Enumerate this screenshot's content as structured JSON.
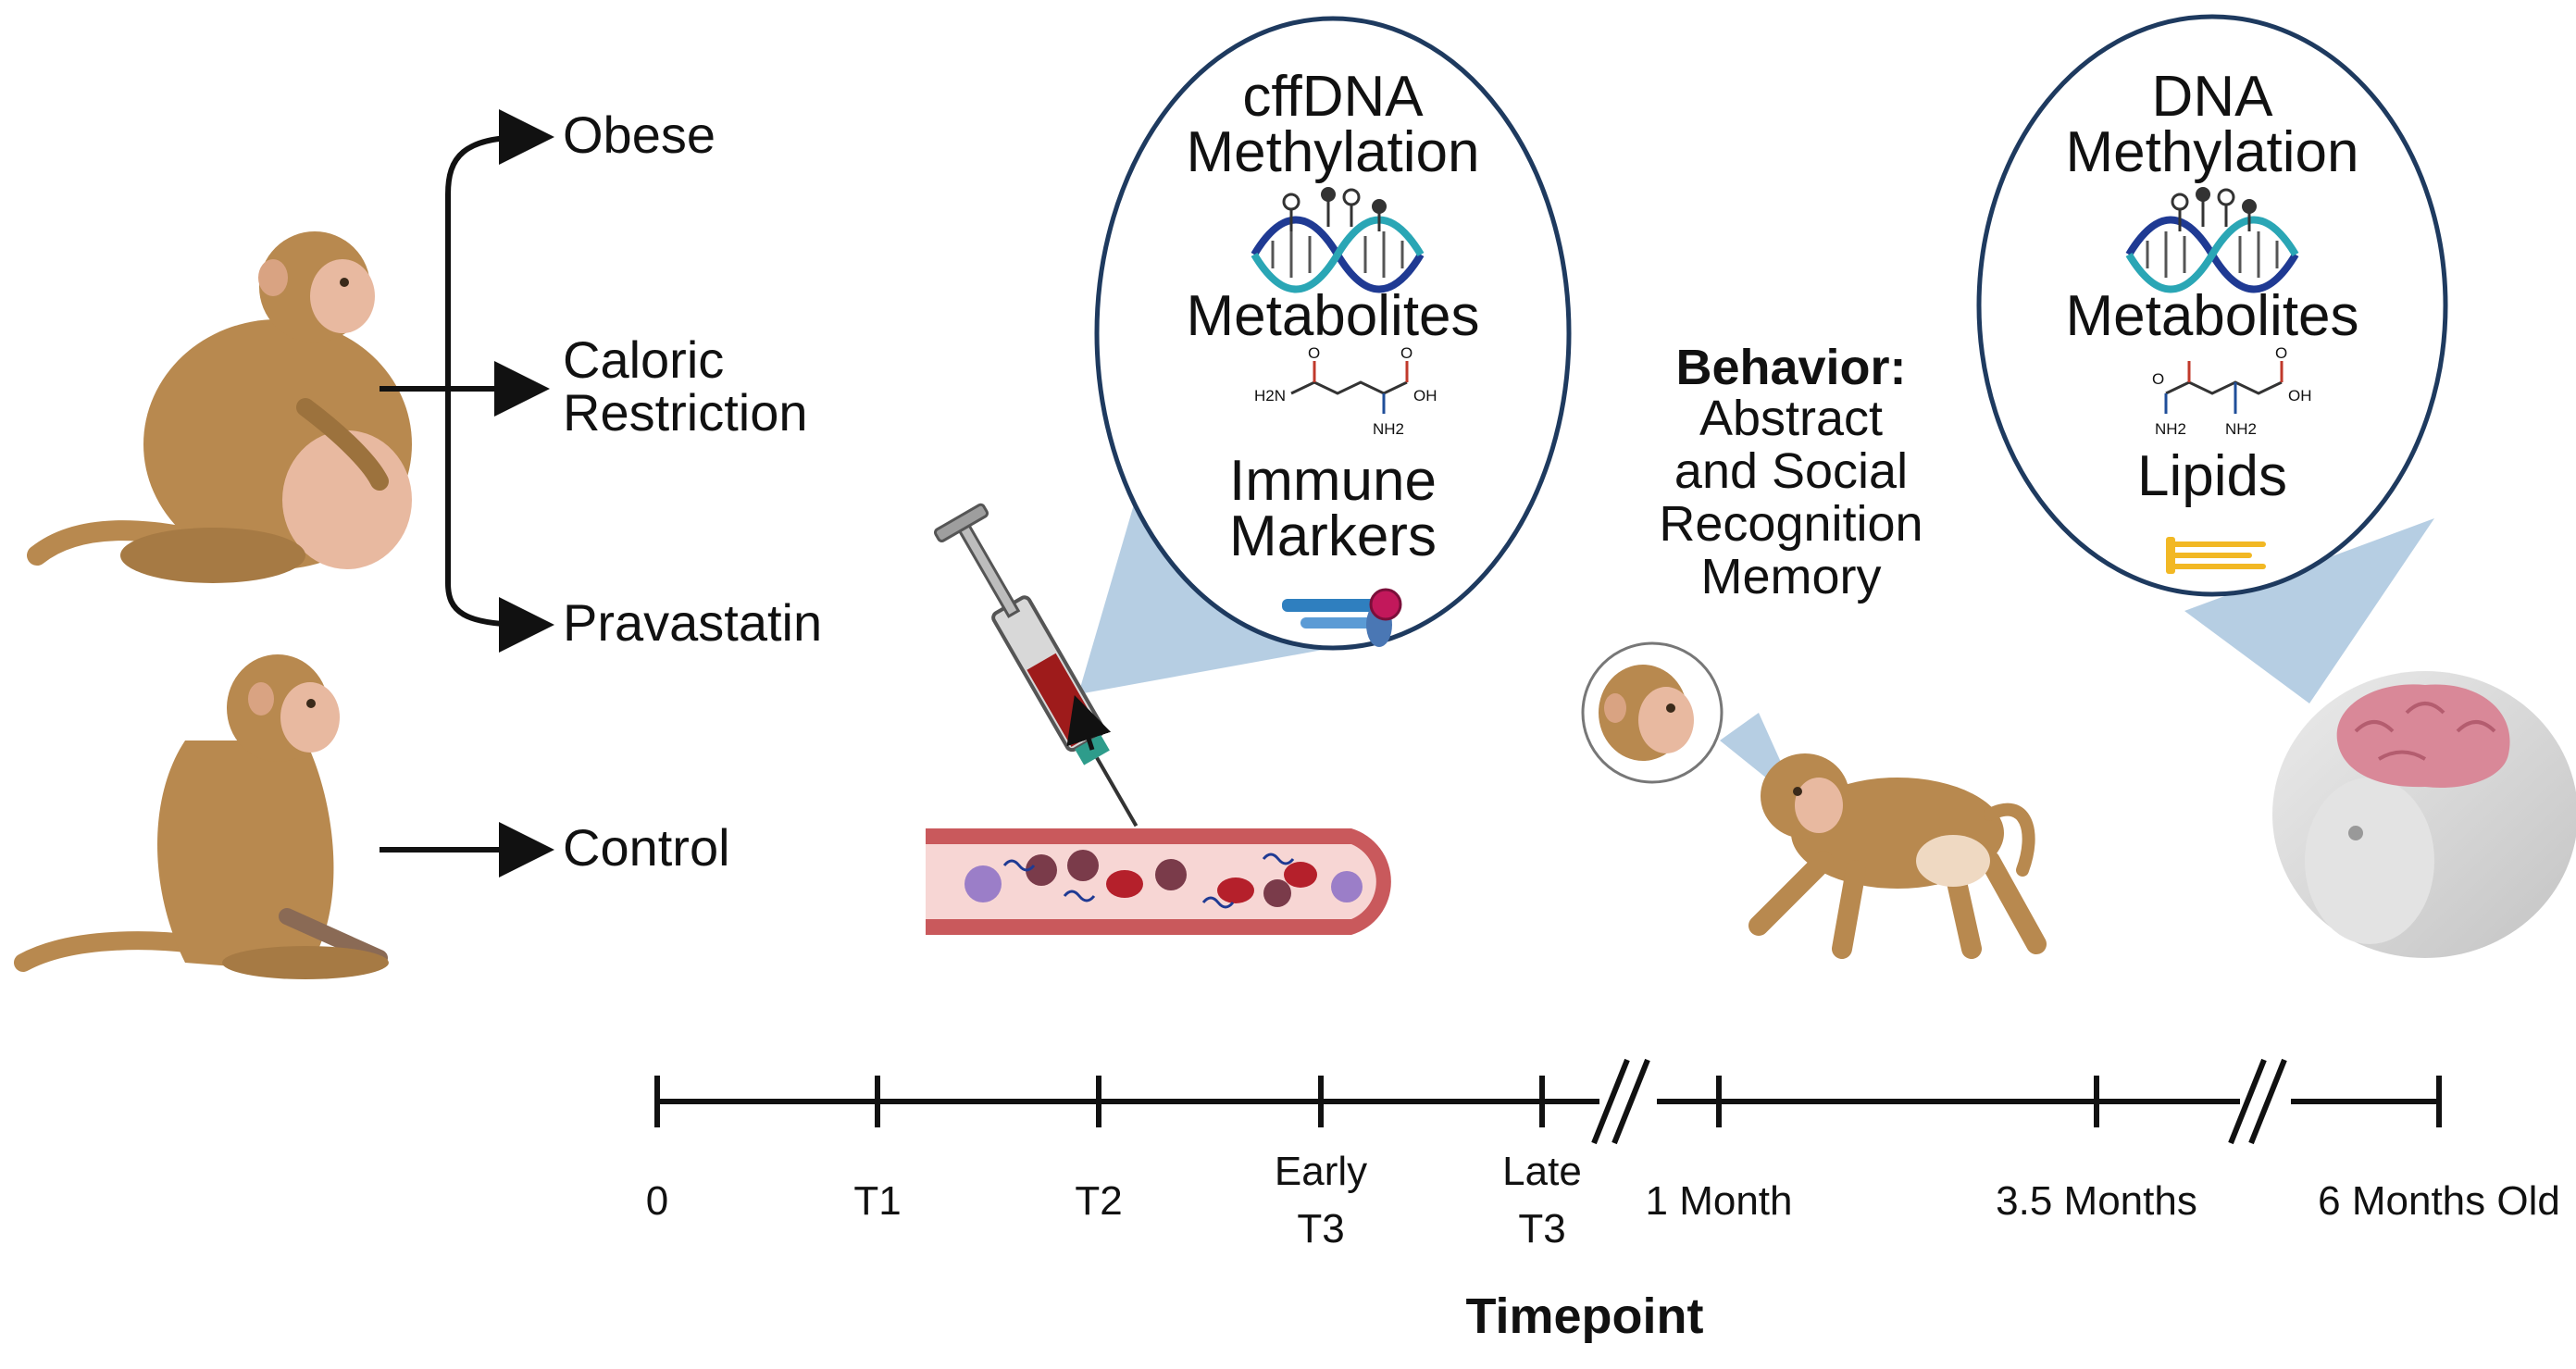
{
  "groups": {
    "obese": "Obese",
    "caloric_line1": "Caloric",
    "caloric_line2": "Restriction",
    "pravastatin": "Pravastatin",
    "control": "Control"
  },
  "blood_bubble": {
    "line1": "cffDNA",
    "line2": "Methylation",
    "metabolites": "Metabolites",
    "immune_line1": "Immune",
    "immune_line2": "Markers",
    "chem_h2n": "H2N",
    "chem_oh": "OH",
    "chem_nh2": "NH2",
    "chem_o1": "O",
    "chem_o2": "O"
  },
  "behavior": {
    "title": "Behavior:",
    "line1": "Abstract",
    "line2": "and Social",
    "line3": "Recognition",
    "line4": "Memory"
  },
  "brain_bubble": {
    "line1": "DNA",
    "line2": "Methylation",
    "metabolites": "Metabolites",
    "lipids": "Lipids",
    "chem_nh2a": "NH2",
    "chem_nh2b": "NH2",
    "chem_oh": "OH",
    "chem_o1": "O",
    "chem_o2": "O"
  },
  "timeline": {
    "ticks": [
      {
        "line1": "0",
        "line2": ""
      },
      {
        "line1": "T1",
        "line2": ""
      },
      {
        "line1": "T2",
        "line2": ""
      },
      {
        "line1": "Early",
        "line2": "T3"
      },
      {
        "line1": "Late",
        "line2": "T3"
      },
      {
        "line1": "1 Month",
        "line2": ""
      },
      {
        "line1": "3.5 Months",
        "line2": ""
      },
      {
        "line1": "6 Months Old",
        "line2": ""
      }
    ],
    "axis_label": "Timepoint"
  },
  "colors": {
    "monkey_fur": "#b8894f",
    "monkey_skin": "#e8b9a0",
    "bubble_fill": "#ffffff",
    "bubble_stroke": "#1e3a5f",
    "callout": "#a9c6de",
    "vessel": "#c9595c",
    "vessel_inner": "#f7d6d4",
    "blood": "#9e1b1b",
    "dna_blue": "#1f3a93",
    "dna_teal": "#2aa6b5",
    "brain": "#d98898",
    "lipid": "#f2b824"
  }
}
